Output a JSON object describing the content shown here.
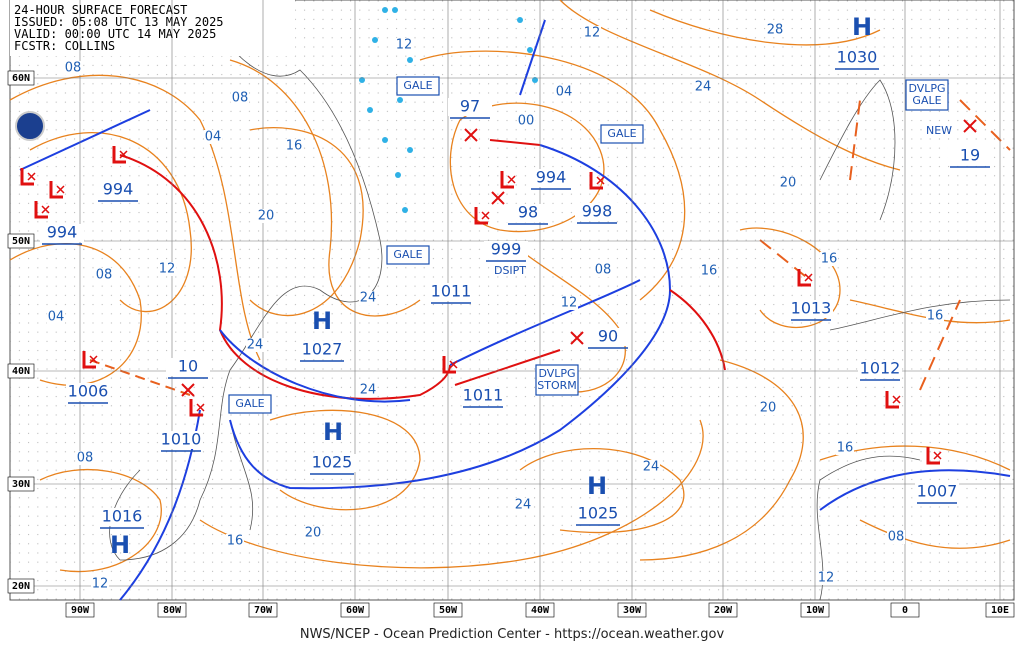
{
  "header": {
    "lines": [
      "24-HOUR SURFACE FORECAST",
      "ISSUED: 05:08 UTC 13 MAY 2025",
      "VALID:  00:00 UTC 14 MAY 2025",
      "FCSTR:  COLLINS"
    ]
  },
  "footer": "NWS/NCEP - Ocean Prediction Center - https://ocean.weather.gov",
  "lat_labels": [
    "60N",
    "50N",
    "40N",
    "30N",
    "20N"
  ],
  "lon_labels": [
    "90W",
    "80W",
    "70W",
    "60W",
    "50W",
    "40W",
    "30W",
    "20W",
    "10W",
    "0",
    "10E"
  ],
  "highs": [
    {
      "symbol": "H",
      "pressure": "1030"
    },
    {
      "symbol": "H",
      "pressure": "1027"
    },
    {
      "symbol": "H",
      "pressure": "1025"
    },
    {
      "symbol": "H",
      "pressure": "1025"
    },
    {
      "symbol": "H",
      "pressure": "1016"
    }
  ],
  "lows": [
    "994",
    "994",
    "97",
    "994",
    "98",
    "998",
    "999",
    "1011",
    "1011",
    "90",
    "1006",
    "10",
    "1010",
    "1013",
    "1012",
    "1007",
    "19"
  ],
  "isobar_labels": [
    "08",
    "08",
    "04",
    "16",
    "20",
    "08",
    "12",
    "04",
    "24",
    "24",
    "24",
    "12",
    "12",
    "28",
    "24",
    "04",
    "00",
    "20",
    "16",
    "16",
    "08",
    "12",
    "16",
    "20",
    "16",
    "24",
    "24",
    "20",
    "16",
    "12",
    "08",
    "08",
    "12"
  ],
  "boxes": [
    [
      "GALE"
    ],
    [
      "GALE"
    ],
    [
      "GALE"
    ],
    [
      "GALE"
    ],
    [
      "DVLPG",
      "GALE"
    ],
    [
      "DVLPG",
      "STORM"
    ]
  ],
  "notes": [
    "DSIPT",
    "NEW"
  ]
}
